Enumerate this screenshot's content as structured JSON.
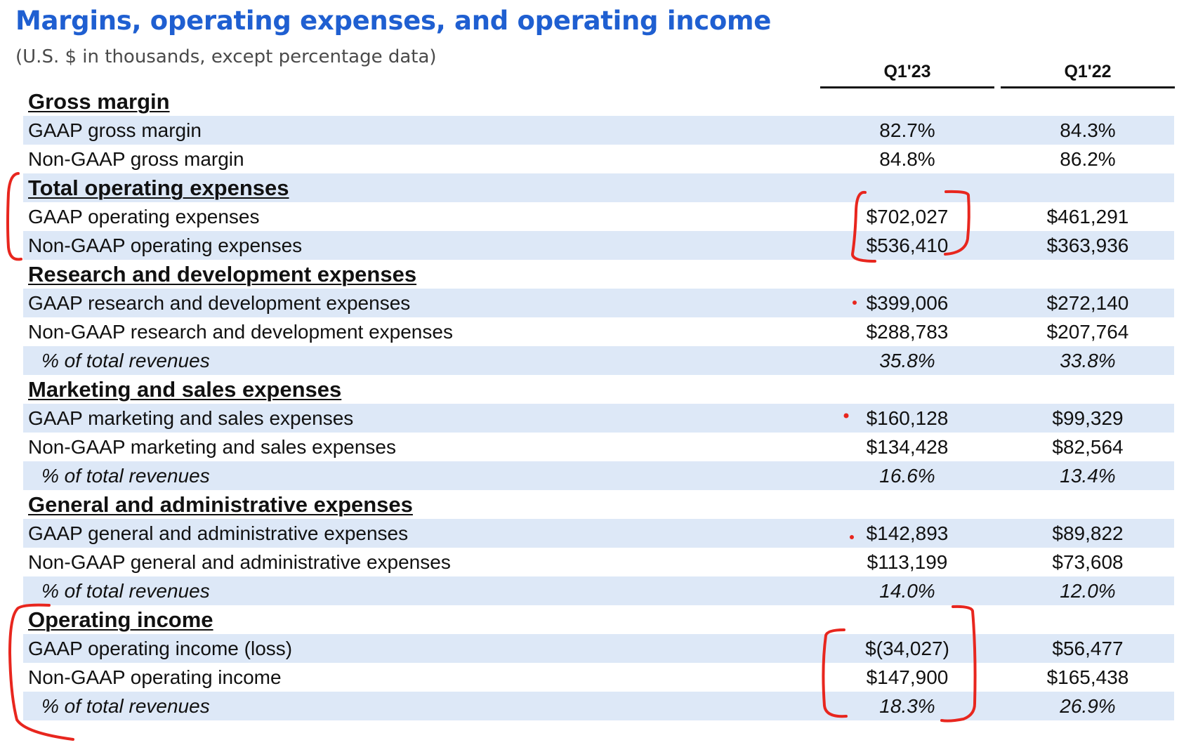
{
  "header": {
    "title": "Margins, operating expenses, and operating income",
    "subtitle": "(U.S. $ in thousands, except percentage data)"
  },
  "columns": {
    "q1_23": "Q1'23",
    "q1_22": "Q1'22"
  },
  "rows": [
    {
      "label": "Gross margin",
      "type": "section",
      "q1_23": "",
      "q1_22": ""
    },
    {
      "label": "GAAP gross margin",
      "type": "item",
      "q1_23": "82.7%",
      "q1_22": "84.3%"
    },
    {
      "label": "Non-GAAP gross margin",
      "type": "item",
      "q1_23": "84.8%",
      "q1_22": "86.2%"
    },
    {
      "label": "Total operating expenses",
      "type": "section",
      "q1_23": "",
      "q1_22": ""
    },
    {
      "label": "GAAP operating expenses",
      "type": "item",
      "q1_23": "$702,027",
      "q1_22": "$461,291"
    },
    {
      "label": "Non-GAAP operating expenses",
      "type": "item",
      "q1_23": "$536,410",
      "q1_22": "$363,936"
    },
    {
      "label": "Research and development expenses",
      "type": "section",
      "q1_23": "",
      "q1_22": ""
    },
    {
      "label": "GAAP research and development expenses",
      "type": "item",
      "q1_23": "$399,006",
      "q1_22": "$272,140"
    },
    {
      "label": "Non-GAAP research and development expenses",
      "type": "item",
      "q1_23": "$288,783",
      "q1_22": "$207,764"
    },
    {
      "label": "% of total revenues",
      "type": "pct",
      "q1_23": "35.8%",
      "q1_22": "33.8%"
    },
    {
      "label": "Marketing and sales expenses",
      "type": "section",
      "q1_23": "",
      "q1_22": ""
    },
    {
      "label": "GAAP marketing and sales expenses",
      "type": "item",
      "q1_23": "$160,128",
      "q1_22": "$99,329"
    },
    {
      "label": "Non-GAAP marketing and sales expenses",
      "type": "item",
      "q1_23": "$134,428",
      "q1_22": "$82,564"
    },
    {
      "label": "% of total revenues",
      "type": "pct",
      "q1_23": "16.6%",
      "q1_22": "13.4%"
    },
    {
      "label": "General and administrative expenses",
      "type": "section",
      "q1_23": "",
      "q1_22": ""
    },
    {
      "label": "GAAP general and administrative expenses",
      "type": "item",
      "q1_23": "$142,893",
      "q1_22": "$89,822"
    },
    {
      "label": "Non-GAAP general and administrative expenses",
      "type": "item",
      "q1_23": "$113,199",
      "q1_22": "$73,608"
    },
    {
      "label": "% of total revenues",
      "type": "pct",
      "q1_23": "14.0%",
      "q1_22": "12.0%"
    },
    {
      "label": "Operating income",
      "type": "section",
      "q1_23": "",
      "q1_22": ""
    },
    {
      "label": "GAAP operating income (loss)",
      "type": "item",
      "q1_23": "$(34,027)",
      "q1_22": "$56,477"
    },
    {
      "label": "Non-GAAP operating income",
      "type": "item",
      "q1_23": "$147,900",
      "q1_22": "$165,438"
    },
    {
      "label": "% of total revenues",
      "type": "pct",
      "q1_23": "18.3%",
      "q1_22": "26.9%"
    }
  ],
  "colors": {
    "title": "#1f5fd1",
    "row_shade": "#dde8f7",
    "annotation": "#e8261e"
  }
}
